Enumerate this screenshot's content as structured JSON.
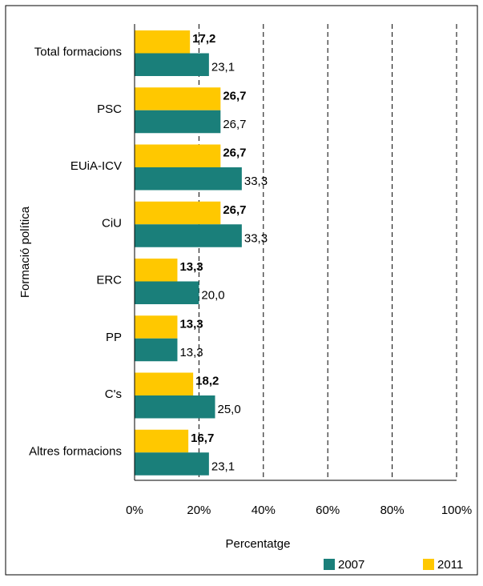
{
  "chart_data": {
    "type": "hbar",
    "y_label": "Formació política",
    "x_label": "Percentatge",
    "categories": [
      "Total formacions",
      "PSC",
      "EUiA-ICV",
      "CiU",
      "ERC",
      "PP",
      "C's",
      "Altres formacions"
    ],
    "series": [
      {
        "name": "2007",
        "color": "#1a7f7a",
        "values": [
          23.1,
          26.7,
          33.3,
          33.3,
          20.0,
          13.3,
          25.0,
          23.1
        ],
        "value_labels": [
          "23,1",
          "26,7",
          "33,3",
          "33,3",
          "20,0",
          "13,3",
          "25,0",
          "23,1"
        ]
      },
      {
        "name": "2011",
        "color": "#ffc800",
        "values": [
          17.2,
          26.7,
          26.7,
          26.7,
          13.3,
          13.3,
          18.2,
          16.7
        ],
        "value_labels": [
          "17,2",
          "26,7",
          "26,7",
          "26,7",
          "13,3",
          "13,3",
          "18,2",
          "16,7"
        ]
      }
    ],
    "xlim": [
      0,
      100
    ],
    "xticks": [
      {
        "value": 0,
        "label": "0%"
      },
      {
        "value": 20,
        "label": "20%"
      },
      {
        "value": 40,
        "label": "40%"
      },
      {
        "value": 60,
        "label": "60%"
      },
      {
        "value": 80,
        "label": "80%"
      },
      {
        "value": 100,
        "label": "100%"
      }
    ],
    "grid": true,
    "legend": "bottom-right"
  }
}
